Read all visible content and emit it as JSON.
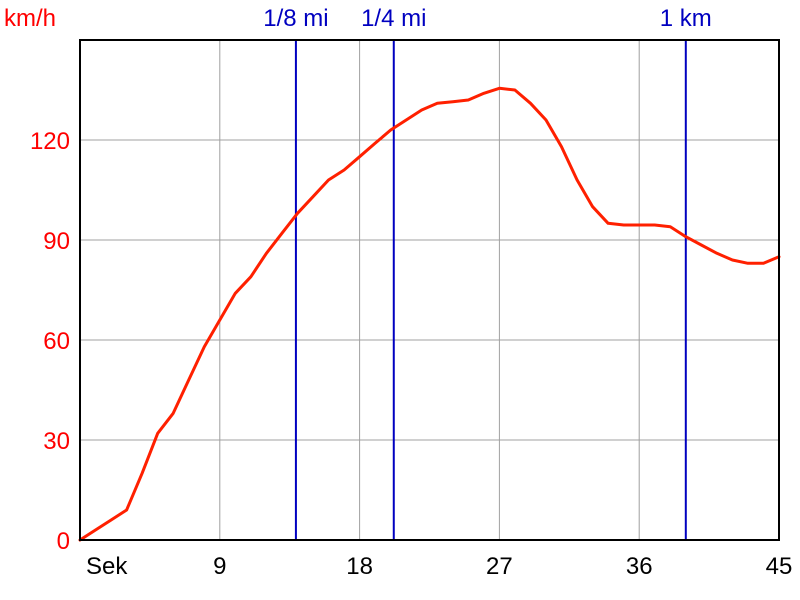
{
  "chart_data": {
    "type": "line",
    "ylabel": "km/h",
    "xlabel": "Sek",
    "xlim": [
      0,
      45
    ],
    "ylim": [
      0,
      150
    ],
    "x_ticks": [
      {
        "value": 0,
        "label": "Sek"
      },
      {
        "value": 9,
        "label": "9"
      },
      {
        "value": 18,
        "label": "18"
      },
      {
        "value": 27,
        "label": "27"
      },
      {
        "value": 36,
        "label": "36"
      },
      {
        "value": 45,
        "label": "45"
      }
    ],
    "y_ticks": [
      {
        "value": 0,
        "label": "0"
      },
      {
        "value": 30,
        "label": "30"
      },
      {
        "value": 60,
        "label": "60"
      },
      {
        "value": 90,
        "label": "90"
      },
      {
        "value": 120,
        "label": "120"
      }
    ],
    "grid": true,
    "colors": {
      "series": "#ff2000",
      "markers": "#0000c0",
      "grid": "#a0a0a0",
      "y_ticks": "#ff0000",
      "x_ticks": "#000000"
    },
    "markers": [
      {
        "label": "1/8 mi",
        "x": 13.9
      },
      {
        "label": "1/4 mi",
        "x": 20.2
      },
      {
        "label": "1 km",
        "x": 39.0
      }
    ],
    "series": [
      {
        "x": [
          0,
          1,
          2,
          3,
          4,
          5,
          6,
          7,
          8,
          9,
          10,
          11,
          12,
          13,
          14,
          15,
          16,
          17,
          18,
          19,
          20,
          21,
          22,
          23,
          24,
          25,
          26,
          27,
          28,
          29,
          30,
          31,
          32,
          33,
          34,
          35,
          36,
          37,
          38,
          39,
          40,
          41,
          42,
          43,
          44,
          45
        ],
        "values": [
          0,
          3,
          6,
          9,
          20,
          32,
          38,
          48,
          58,
          66,
          74,
          79,
          86,
          92,
          98,
          103,
          108,
          111,
          115,
          119,
          123,
          126,
          129,
          131,
          131.5,
          132,
          134,
          135.5,
          135,
          131,
          126,
          118,
          108,
          100,
          95,
          94.5,
          94.5,
          94.5,
          94,
          91,
          88.5,
          86,
          84,
          83,
          83,
          85
        ]
      }
    ]
  }
}
